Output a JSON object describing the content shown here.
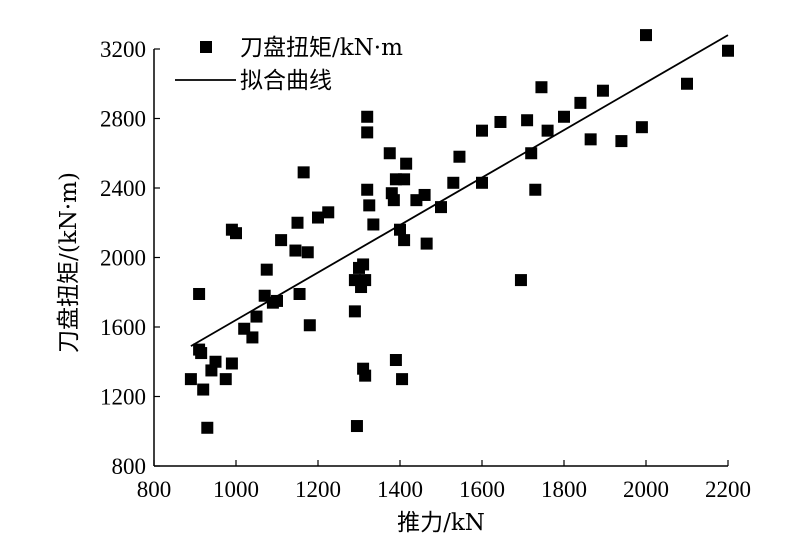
{
  "chart_data": {
    "type": "scatter",
    "title": "",
    "xlabel": "推力/kN",
    "ylabel": "刀盘扭矩/(kN·m)",
    "xlim": [
      800,
      2200
    ],
    "ylim": [
      800,
      3200
    ],
    "x_ticks": [
      "800",
      "1000",
      "1200",
      "1400",
      "1600",
      "1800",
      "2000",
      "2200"
    ],
    "y_ticks": [
      "800",
      "1200",
      "1600",
      "2000",
      "2400",
      "2800",
      "3200"
    ],
    "legend": {
      "position": "top-left"
    },
    "series": [
      {
        "name": "刀盘扭矩/kN·m",
        "marker": "square",
        "color": "#000000",
        "points": [
          [
            890,
            1300
          ],
          [
            910,
            1790
          ],
          [
            910,
            1470
          ],
          [
            915,
            1450
          ],
          [
            920,
            1240
          ],
          [
            930,
            1020
          ],
          [
            940,
            1350
          ],
          [
            950,
            1400
          ],
          [
            975,
            1300
          ],
          [
            990,
            2160
          ],
          [
            990,
            1390
          ],
          [
            1000,
            2140
          ],
          [
            1020,
            1590
          ],
          [
            1040,
            1540
          ],
          [
            1050,
            1660
          ],
          [
            1070,
            1780
          ],
          [
            1075,
            1930
          ],
          [
            1090,
            1740
          ],
          [
            1100,
            1750
          ],
          [
            1110,
            2100
          ],
          [
            1145,
            2040
          ],
          [
            1150,
            2200
          ],
          [
            1155,
            1790
          ],
          [
            1165,
            2490
          ],
          [
            1175,
            2030
          ],
          [
            1180,
            1610
          ],
          [
            1200,
            2230
          ],
          [
            1225,
            2260
          ],
          [
            1290,
            1870
          ],
          [
            1290,
            1690
          ],
          [
            1295,
            1030
          ],
          [
            1300,
            1940
          ],
          [
            1305,
            1830
          ],
          [
            1310,
            1960
          ],
          [
            1310,
            1360
          ],
          [
            1315,
            1320
          ],
          [
            1315,
            1870
          ],
          [
            1320,
            2810
          ],
          [
            1320,
            2720
          ],
          [
            1320,
            2390
          ],
          [
            1325,
            2300
          ],
          [
            1335,
            2190
          ],
          [
            1375,
            2600
          ],
          [
            1380,
            2370
          ],
          [
            1385,
            2330
          ],
          [
            1390,
            2450
          ],
          [
            1390,
            1410
          ],
          [
            1400,
            2160
          ],
          [
            1405,
            1300
          ],
          [
            1410,
            2450
          ],
          [
            1410,
            2100
          ],
          [
            1415,
            2540
          ],
          [
            1440,
            2330
          ],
          [
            1460,
            2360
          ],
          [
            1465,
            2080
          ],
          [
            1500,
            2290
          ],
          [
            1530,
            2430
          ],
          [
            1545,
            2580
          ],
          [
            1600,
            2730
          ],
          [
            1600,
            2430
          ],
          [
            1645,
            2780
          ],
          [
            1695,
            1870
          ],
          [
            1710,
            2790
          ],
          [
            1720,
            2600
          ],
          [
            1730,
            2390
          ],
          [
            1745,
            2980
          ],
          [
            1760,
            2730
          ],
          [
            1800,
            2810
          ],
          [
            1840,
            2890
          ],
          [
            1865,
            2680
          ],
          [
            1895,
            2960
          ],
          [
            1940,
            2670
          ],
          [
            1990,
            2750
          ],
          [
            2000,
            3280
          ],
          [
            2100,
            3000
          ],
          [
            2200,
            3190
          ]
        ]
      },
      {
        "name": "拟合曲线",
        "type": "line",
        "color": "#000000",
        "points": [
          [
            890,
            1490
          ],
          [
            2200,
            3280
          ]
        ]
      }
    ]
  }
}
